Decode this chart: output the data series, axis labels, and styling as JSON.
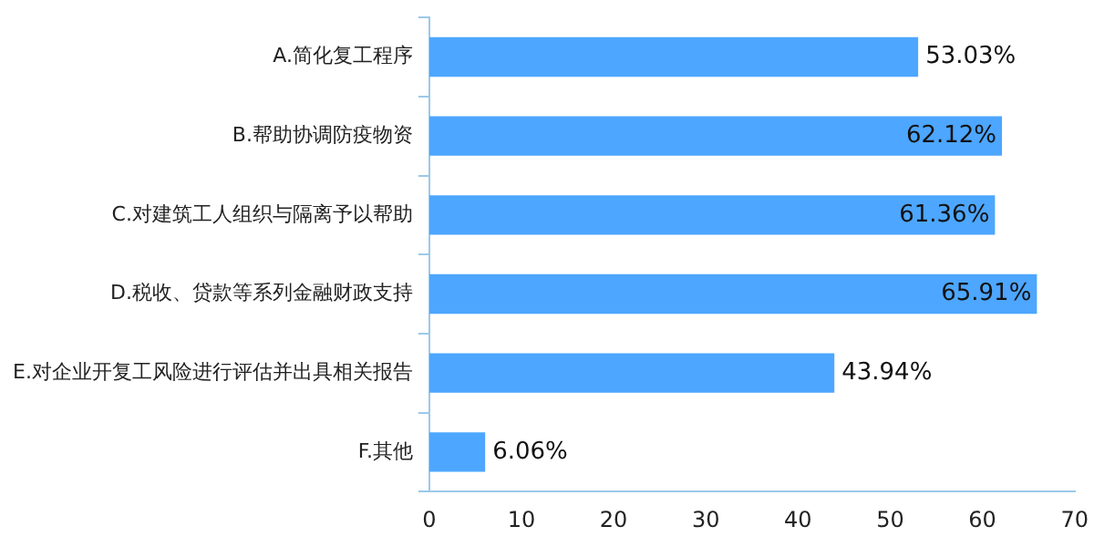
{
  "chart_data": {
    "type": "bar",
    "orientation": "horizontal",
    "categories": [
      "A.简化复工程序",
      "B.帮助协调防疫物资",
      "C.对建筑工人组织与隔离予以帮助",
      "D.税收、贷款等系列金融财政支持",
      "E.对企业开复工风险进行评估并出具相关报告",
      "F.其他"
    ],
    "values": [
      53.03,
      62.12,
      61.36,
      65.91,
      43.94,
      6.06
    ],
    "color": "#4da6ff",
    "value_labels": [
      "53.03%",
      "62.12%",
      "61.36%",
      "65.91%",
      "43.94%",
      "6.06%"
    ],
    "xlim": [
      0,
      70
    ],
    "xticks": [
      0,
      10,
      20,
      30,
      40,
      50,
      60,
      70
    ],
    "grid": false,
    "legend": false
  }
}
